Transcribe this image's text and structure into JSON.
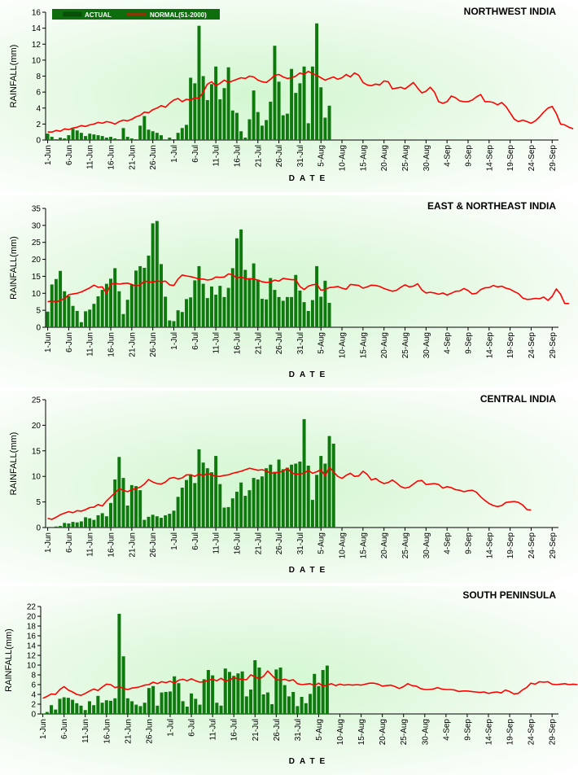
{
  "legend": {
    "actual": "ACTUAL",
    "normal": "NORMAL(51-2000)"
  },
  "colors": {
    "actual_bar": "#0e7a0e",
    "normal_line": "#ff0000",
    "legend_bg": "#0e6e0e",
    "axis": "#000000"
  },
  "chart_data": [
    {
      "type": "bar+line",
      "title": "NORTHWEST  INDIA",
      "xlabel": "DATE",
      "ylabel": "RAINFALL(mm)",
      "ylim": [
        0,
        16
      ],
      "yticks": [
        0,
        2,
        4,
        6,
        8,
        10,
        12,
        14,
        16
      ],
      "xticks": [
        "1-Jun",
        "6-Jun",
        "11-Jun",
        "16-Jun",
        "21-Jun",
        "26-Jun",
        "1-Jul",
        "6-Jul",
        "11-Jul",
        "16-Jul",
        "21-Jul",
        "26-Jul",
        "31-Jul",
        "5-Aug",
        "10-Aug",
        "15-Aug",
        "20-Aug",
        "25-Aug",
        "30-Aug",
        "4-Sep",
        "9-Sep",
        "14-Sep",
        "19-Sep",
        "24-Sep",
        "29-Sep"
      ],
      "grid": false,
      "legend": "top-left",
      "series": [
        {
          "name": "ACTUAL",
          "type": "bar",
          "values": [
            0.8,
            0.4,
            0.1,
            0.3,
            0.2,
            0.6,
            1.4,
            1.2,
            0.9,
            0.5,
            0.8,
            0.7,
            0.6,
            0.5,
            0.3,
            0.4,
            0.2,
            0.1,
            1.5,
            0.4,
            0.2,
            0.1,
            1.8,
            3.0,
            1.3,
            1.1,
            0.9,
            0.6,
            0,
            0.3,
            0.1,
            0.9,
            1.5,
            1.9,
            7.8,
            7.1,
            14.3,
            8.0,
            5.0,
            7.0,
            9.2,
            5.1,
            6.5,
            9.1,
            3.7,
            3.4,
            1.1,
            0.3,
            2.6,
            6.2,
            3.5,
            1.8,
            2.5,
            4.8,
            11.8,
            7.3,
            3.1,
            3.3,
            8.9,
            5.9,
            7.1,
            9.2,
            2.1,
            9.2,
            14.6,
            6.6,
            2.8,
            4.3
          ]
        },
        {
          "name": "NORMAL(51-2000)",
          "type": "line",
          "values": [
            1.0,
            1.0,
            1.2,
            1.1,
            1.4,
            1.3,
            1.5,
            1.6,
            1.8,
            1.7,
            1.9,
            2.0,
            2.2,
            2.1,
            2.3,
            2.2,
            2.0,
            2.3,
            2.5,
            2.4,
            2.6,
            2.9,
            3.1,
            3.5,
            3.4,
            3.8,
            4.0,
            4.3,
            4.1,
            4.6,
            5.0,
            5.2,
            4.8,
            5.1,
            5.0,
            5.3,
            5.2,
            6.0,
            7.0,
            7.3,
            6.8,
            7.1,
            7.5,
            7.2,
            7.4,
            7.6,
            7.8,
            7.7,
            8.0,
            7.9,
            7.5,
            7.3,
            7.2,
            7.6,
            8.1,
            8.2,
            7.9,
            7.7,
            7.8,
            8.0,
            8.4,
            8.2,
            8.6,
            8.3,
            8.1,
            7.8,
            7.5,
            7.7,
            7.9,
            7.6,
            7.8,
            8.2,
            7.9,
            8.4,
            8.1,
            7.2,
            6.9,
            6.8,
            7.0,
            6.9,
            7.4,
            7.3,
            6.4,
            6.5,
            6.6,
            6.4,
            6.8,
            7.2,
            6.5,
            5.9,
            6.1,
            6.6,
            6.0,
            4.8,
            4.6,
            4.8,
            5.5,
            5.3,
            4.9,
            4.8,
            4.8,
            5.0,
            5.4,
            5.7,
            4.8,
            4.8,
            4.7,
            4.4,
            4.7,
            4.2,
            3.4,
            2.6,
            2.3,
            2.5,
            2.3,
            2.1,
            2.4,
            2.9,
            3.5,
            4.0,
            4.2,
            3.3,
            2.0,
            1.9,
            1.6,
            1.4
          ]
        }
      ]
    },
    {
      "type": "bar+line",
      "title": "EAST & NORTHEAST INDIA",
      "xlabel": "DATE",
      "ylabel": "RAINFALL(mm)",
      "ylim": [
        0,
        35
      ],
      "yticks": [
        0,
        5,
        10,
        15,
        20,
        25,
        30,
        35
      ],
      "xticks": [
        "1-Jun",
        "6-Jun",
        "11-Jun",
        "16-Jun",
        "21-Jun",
        "26-Jun",
        "1-Jul",
        "6-Jul",
        "11-Jul",
        "16-Jul",
        "21-Jul",
        "26-Jul",
        "31-Jul",
        "5-Aug",
        "10-Aug",
        "15-Aug",
        "20-Aug",
        "25-Aug",
        "30-Aug",
        "4-Sep",
        "9-Sep",
        "14-Sep",
        "19-Sep",
        "24-Sep",
        "29-Sep"
      ],
      "grid": false,
      "series": [
        {
          "name": "ACTUAL",
          "type": "bar",
          "values": [
            4.6,
            12.6,
            14.2,
            16.6,
            10.6,
            9.2,
            6.3,
            4.8,
            1.5,
            4.7,
            5.2,
            6.9,
            9.1,
            11.0,
            12.8,
            14.3,
            17.4,
            10.6,
            3.9,
            8.1,
            12.6,
            16.7,
            18.0,
            17.5,
            21.1,
            30.6,
            31.3,
            18.6,
            9.0,
            2.0,
            1.8,
            5.0,
            4.5,
            8.3,
            8.8,
            13.8,
            18.0,
            12.8,
            8.6,
            12.0,
            9.6,
            12.2,
            8.9,
            11.6,
            17.4,
            26.2,
            28.8,
            16.9,
            14.2,
            18.8,
            14.0,
            8.4,
            8.2,
            14.5,
            11.0,
            8.9,
            7.8,
            8.9,
            8.9,
            15.4,
            10.8,
            7.4,
            4.8,
            8.0,
            18.0,
            9.0,
            13.7,
            7.2
          ]
        },
        {
          "name": "NORMAL(51-2000)",
          "type": "line",
          "values": [
            7.5,
            7.8,
            7.4,
            8.0,
            8.4,
            9.6,
            9.8,
            10.0,
            10.4,
            11.0,
            11.6,
            12.4,
            11.8,
            11.9,
            10.0,
            12.6,
            13.0,
            12.7,
            12.9,
            13.0,
            12.6,
            12.1,
            12.5,
            13.6,
            13.4,
            13.2,
            13.7,
            13.4,
            13.6,
            12.5,
            12.3,
            14.2,
            15.4,
            15.1,
            14.9,
            14.6,
            14.2,
            14.2,
            13.9,
            14.1,
            14.8,
            14.7,
            14.8,
            15.7,
            15.5,
            14.4,
            14.9,
            14.2,
            14.3,
            14.2,
            13.9,
            13.4,
            13.2,
            13.3,
            13.9,
            13.6,
            14.4,
            14.2,
            14.0,
            14.0,
            12.0,
            11.1,
            12.1,
            12.5,
            12.7,
            10.9,
            11.1,
            11.7,
            11.8,
            12.0,
            11.5,
            11.2,
            12.6,
            12.5,
            12.3,
            11.5,
            11.9,
            12.4,
            12.3,
            12.0,
            11.4,
            11.0,
            10.6,
            10.9,
            11.8,
            12.5,
            11.9,
            12.1,
            12.8,
            11.0,
            10.1,
            10.3,
            10.1,
            9.7,
            10.1,
            9.5,
            10.0,
            10.6,
            10.7,
            11.4,
            10.8,
            9.8,
            10.0,
            11.1,
            11.6,
            11.7,
            12.3,
            11.9,
            12.1,
            11.5,
            11.2,
            10.5,
            9.9,
            8.6,
            8.2,
            8.3,
            8.5,
            8.4,
            8.9,
            7.9,
            9.1,
            11.3,
            9.7,
            7.0,
            7.0
          ]
        }
      ]
    },
    {
      "type": "bar+line",
      "title": "CENTRAL INDIA",
      "xlabel": "DATE",
      "ylabel": "RAINFALL(mm)",
      "ylim": [
        0,
        25
      ],
      "yticks": [
        0,
        5,
        10,
        15,
        20,
        25
      ],
      "xticks": [
        "1-Jun",
        "6-Jun",
        "11-Jun",
        "16-Jun",
        "21-Jun",
        "26-Jun",
        "1-Jul",
        "6-Jul",
        "11-Jul",
        "16-Jul",
        "21-Jul",
        "26-Jul",
        "31-Jul",
        "5-Aug",
        "10-Aug",
        "15-Aug",
        "20-Aug",
        "25-Aug",
        "30-Aug",
        "4-Sep",
        "9-Sep",
        "14-Sep",
        "19-Sep",
        "24-Sep",
        "29-Sep"
      ],
      "grid": false,
      "series": [
        {
          "name": "ACTUAL",
          "type": "bar",
          "values": [
            0.1,
            0.1,
            0.2,
            0.3,
            0.9,
            0.8,
            1.1,
            1.0,
            1.2,
            2.0,
            1.8,
            1.5,
            2.4,
            2.8,
            2.2,
            4.8,
            9.4,
            13.8,
            9.7,
            4.3,
            8.3,
            8.1,
            7.3,
            1.5,
            2.1,
            2.5,
            2.2,
            1.9,
            2.4,
            2.7,
            3.3,
            6.0,
            7.8,
            9.3,
            10.4,
            8.7,
            15.3,
            12.7,
            11.6,
            10.8,
            14.0,
            8.5,
            3.9,
            4.0,
            5.7,
            7.0,
            8.8,
            6.2,
            7.3,
            9.7,
            9.4,
            10.0,
            11.6,
            12.3,
            10.9,
            13.3,
            11.4,
            11.7,
            12.3,
            12.5,
            12.9,
            21.2,
            12.1,
            5.4,
            10.3,
            14.0,
            12.5,
            17.9,
            16.4
          ]
        },
        {
          "name": "NORMAL(51-2000)",
          "type": "line",
          "values": [
            1.8,
            1.6,
            2.0,
            2.5,
            2.8,
            3.1,
            2.9,
            3.3,
            3.2,
            3.5,
            3.9,
            4.0,
            4.5,
            4.2,
            5.2,
            6.0,
            6.8,
            7.6,
            7.3,
            7.0,
            7.4,
            7.6,
            7.9,
            8.5,
            9.4,
            8.9,
            8.6,
            8.5,
            8.9,
            9.6,
            9.8,
            9.5,
            9.7,
            10.3,
            10.3,
            10.0,
            10.5,
            10.1,
            10.6,
            10.3,
            10.0,
            10.0,
            10.2,
            10.3,
            10.6,
            10.8,
            11.0,
            11.3,
            11.6,
            11.4,
            11.2,
            11.3,
            11.1,
            10.6,
            10.7,
            10.8,
            11.0,
            11.6,
            10.7,
            10.4,
            10.5,
            10.6,
            11.2,
            10.6,
            10.9,
            11.3,
            10.1,
            11.8,
            10.9,
            10.0,
            9.6,
            10.2,
            10.6,
            10.0,
            10.1,
            11.0,
            10.4,
            9.3,
            9.6,
            9.0,
            8.6,
            8.8,
            9.3,
            8.7,
            8.0,
            7.7,
            7.9,
            8.5,
            9.1,
            9.2,
            8.4,
            8.5,
            8.6,
            8.4,
            7.7,
            8.0,
            7.8,
            7.4,
            7.3,
            7.0,
            7.2,
            7.3,
            6.9,
            6.0,
            5.3,
            4.7,
            4.3,
            4.1,
            4.3,
            4.9,
            5.0,
            5.1,
            4.9,
            4.4,
            3.5,
            3.4
          ]
        }
      ]
    },
    {
      "type": "bar+line",
      "title": "SOUTH  PENINSULA",
      "xlabel": "DATE",
      "ylabel": "RAINFALL(mm)",
      "ylim": [
        0,
        22
      ],
      "yticks": [
        0,
        2,
        4,
        6,
        8,
        10,
        12,
        14,
        16,
        18,
        20,
        22
      ],
      "xticks": [
        "1-Jun",
        "6-Jun",
        "11-Jun",
        "16-Jun",
        "21-Jun",
        "26-Jun",
        "1-Jul",
        "6-Jul",
        "11-Jul",
        "16-Jul",
        "21-Jul",
        "26-Jul",
        "31-Jul",
        "5-Aug",
        "10-Aug",
        "15-Aug",
        "20-Aug",
        "25-Aug",
        "30-Aug",
        "4-Sep",
        "9-Sep",
        "14-Sep",
        "19-Sep",
        "24-Sep",
        "29-Sep"
      ],
      "grid": false,
      "series": [
        {
          "name": "ACTUAL",
          "type": "bar",
          "values": [
            0.1,
            0.4,
            1.8,
            0.9,
            3.1,
            3.4,
            3.3,
            2.9,
            2.2,
            1.7,
            0.8,
            2.6,
            1.8,
            3.7,
            2.3,
            2.8,
            2.7,
            3.2,
            20.5,
            11.8,
            3.2,
            2.6,
            1.9,
            1.6,
            2.3,
            5.3,
            5.7,
            1.7,
            4.4,
            4.5,
            4.6,
            7.7,
            6.3,
            2.6,
            1.5,
            4.2,
            3.1,
            1.9,
            7.1,
            9.0,
            7.9,
            2.3,
            1.7,
            9.3,
            8.6,
            7.8,
            8.3,
            8.7,
            3.6,
            5.0,
            11.0,
            9.5,
            4.0,
            4.4,
            2.0,
            9.1,
            9.5,
            5.9,
            3.6,
            4.5,
            1.6,
            3.5,
            2.2,
            4.1,
            8.2,
            5.7,
            9.0,
            9.9
          ]
        },
        {
          "name": "NORMAL(51-2000)",
          "type": "line",
          "values": [
            3.2,
            3.6,
            4.1,
            4.0,
            5.0,
            5.6,
            4.9,
            4.5,
            4.0,
            3.8,
            4.2,
            4.7,
            5.1,
            4.8,
            5.5,
            6.1,
            6.0,
            5.4,
            5.6,
            5.2,
            5.0,
            5.3,
            5.4,
            5.6,
            5.9,
            6.0,
            6.5,
            6.2,
            6.6,
            6.4,
            6.7,
            6.3,
            6.9,
            7.1,
            6.8,
            7.2,
            6.8,
            6.5,
            6.6,
            6.9,
            7.1,
            6.8,
            7.3,
            6.7,
            7.0,
            7.4,
            7.2,
            7.1,
            7.0,
            8.0,
            7.6,
            7.2,
            7.7,
            8.8,
            7.9,
            7.0,
            6.9,
            7.1,
            6.8,
            7.0,
            6.2,
            6.0,
            6.1,
            6.2,
            5.8,
            6.3,
            5.7,
            5.9,
            6.2,
            5.8,
            6.1,
            5.9,
            6.0,
            5.9,
            6.0,
            5.9,
            6.1,
            6.3,
            6.3,
            6.1,
            5.7,
            5.8,
            5.9,
            5.6,
            5.2,
            5.6,
            6.2,
            5.8,
            5.7,
            5.2,
            5.0,
            5.0,
            5.1,
            5.4,
            5.1,
            5.0,
            5.0,
            4.9,
            4.6,
            4.7,
            4.7,
            4.6,
            4.5,
            4.4,
            4.5,
            4.2,
            4.4,
            4.5,
            4.3,
            4.9,
            4.6,
            4.1,
            4.2,
            4.9,
            5.4,
            6.3,
            6.1,
            6.6,
            6.5,
            6.6,
            6.1,
            6.0,
            6.1,
            6.2,
            6.0,
            6.1,
            6.0
          ]
        }
      ]
    }
  ]
}
